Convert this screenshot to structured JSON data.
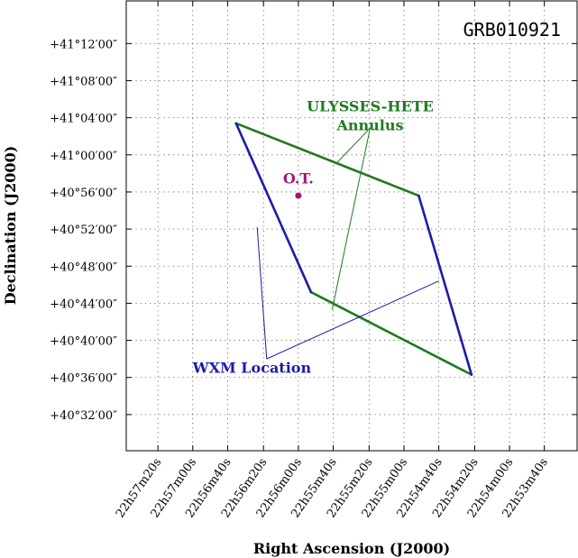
{
  "chart_data": {
    "type": "scatter",
    "title": "GRB010921",
    "xlabel": "Right Ascension (J2000)",
    "ylabel": "Declination (J2000)",
    "grid": true,
    "x_ticks": [
      {
        "value": 1377.33,
        "label": "22h57m20s"
      },
      {
        "value": 1377.0,
        "label": "22h57m00s"
      },
      {
        "value": 1376.67,
        "label": "22h56m40s"
      },
      {
        "value": 1376.33,
        "label": "22h56m20s"
      },
      {
        "value": 1376.0,
        "label": "22h56m00s"
      },
      {
        "value": 1375.67,
        "label": "22h55m40s"
      },
      {
        "value": 1375.33,
        "label": "22h55m20s"
      },
      {
        "value": 1375.0,
        "label": "22h55m00s"
      },
      {
        "value": 1374.67,
        "label": "22h54m40s"
      },
      {
        "value": 1374.33,
        "label": "22h54m20s"
      },
      {
        "value": 1374.0,
        "label": "22h54m00s"
      },
      {
        "value": 1373.67,
        "label": "22h53m40s"
      }
    ],
    "y_ticks": [
      {
        "value": 2472,
        "label": "+41°12′00″"
      },
      {
        "value": 2468,
        "label": "+41°08′00″"
      },
      {
        "value": 2464,
        "label": "+41°04′00″"
      },
      {
        "value": 2460,
        "label": "+41°00′00″"
      },
      {
        "value": 2456,
        "label": "+40°56′00″"
      },
      {
        "value": 2452,
        "label": "+40°52′00″"
      },
      {
        "value": 2448,
        "label": "+40°48′00″"
      },
      {
        "value": 2444,
        "label": "+40°44′00″"
      },
      {
        "value": 2440,
        "label": "+40°40′00″"
      },
      {
        "value": 2436,
        "label": "+40°36′00″"
      },
      {
        "value": 2432,
        "label": "+40°32′00″"
      }
    ],
    "series": [
      {
        "kind": "polygon-edges",
        "color": "#1f7a1f",
        "segments": [
          [
            [
              1376.59,
              2463.4
            ],
            [
              1374.86,
              2455.6
            ]
          ],
          [
            [
              1375.88,
              2445.2
            ],
            [
              1374.36,
              2436.3
            ]
          ]
        ]
      },
      {
        "kind": "polygon-edges",
        "color": "#1c1ca8",
        "segments": [
          [
            [
              1376.59,
              2463.4
            ],
            [
              1375.88,
              2445.2
            ]
          ],
          [
            [
              1374.86,
              2455.6
            ],
            [
              1374.36,
              2436.3
            ]
          ]
        ]
      },
      {
        "kind": "point",
        "color": "#a0197a",
        "x": 1376.0,
        "y": 2455.6
      }
    ],
    "annotations": [
      {
        "lines": [
          "ULYSSES-HETE",
          "Annulus"
        ],
        "color": "#1f7a1f",
        "text_at": [
          1375.32,
          2464.7
        ],
        "leaders": [
          {
            "from": [
              1375.32,
              2462.9
            ],
            "to": [
              1375.63,
              2459.2
            ]
          },
          {
            "from": [
              1375.32,
              2462.9
            ],
            "to": [
              1375.68,
              2443.3
            ]
          }
        ]
      },
      {
        "lines": [
          "O.T."
        ],
        "color": "#a0197a",
        "text_at": [
          1376.0,
          2456.9
        ],
        "leaders": []
      },
      {
        "lines": [
          "WXM Location"
        ],
        "color": "#1c1ca8",
        "text_at": [
          1376.44,
          2436.5
        ],
        "leaders": [
          {
            "from": [
              1376.3,
              2438.0
            ],
            "to": [
              1376.39,
              2452.2
            ]
          },
          {
            "from": [
              1376.3,
              2438.0
            ],
            "to": [
              1374.67,
              2446.4
            ]
          }
        ]
      }
    ],
    "xlim": [
      1377.63,
      1373.36
    ],
    "ylim": [
      2428.1,
      2476.6
    ]
  }
}
